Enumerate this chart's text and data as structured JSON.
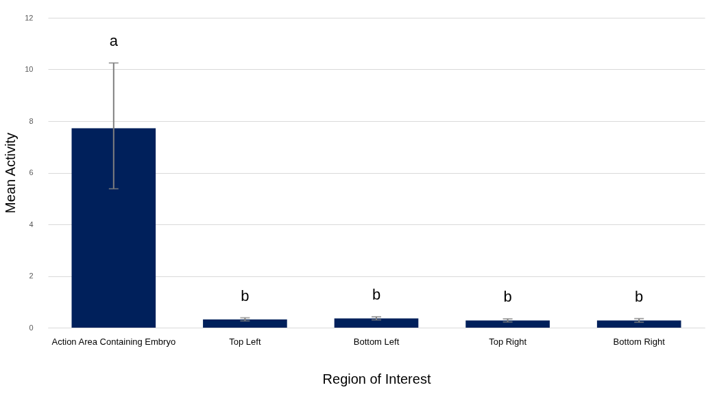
{
  "chart_data": {
    "type": "bar",
    "xlabel": "Region of Interest",
    "ylabel": "Mean Activity",
    "categories": [
      "Action Area Containing Embryo",
      "Top Left",
      "Bottom Left",
      "Top Right",
      "Bottom Right"
    ],
    "values": [
      7.72,
      0.32,
      0.36,
      0.28,
      0.28
    ],
    "color": "#00205b",
    "errors": [
      [
        5.38,
        10.25
      ],
      0.06,
      0.06,
      0.06,
      0.07
    ],
    "ylim": [
      0,
      12
    ],
    "yticks": [
      0,
      2,
      4,
      6,
      8,
      10,
      12
    ],
    "grid": "y",
    "annotations": [
      "a",
      "b",
      "b",
      "b",
      "b"
    ]
  }
}
